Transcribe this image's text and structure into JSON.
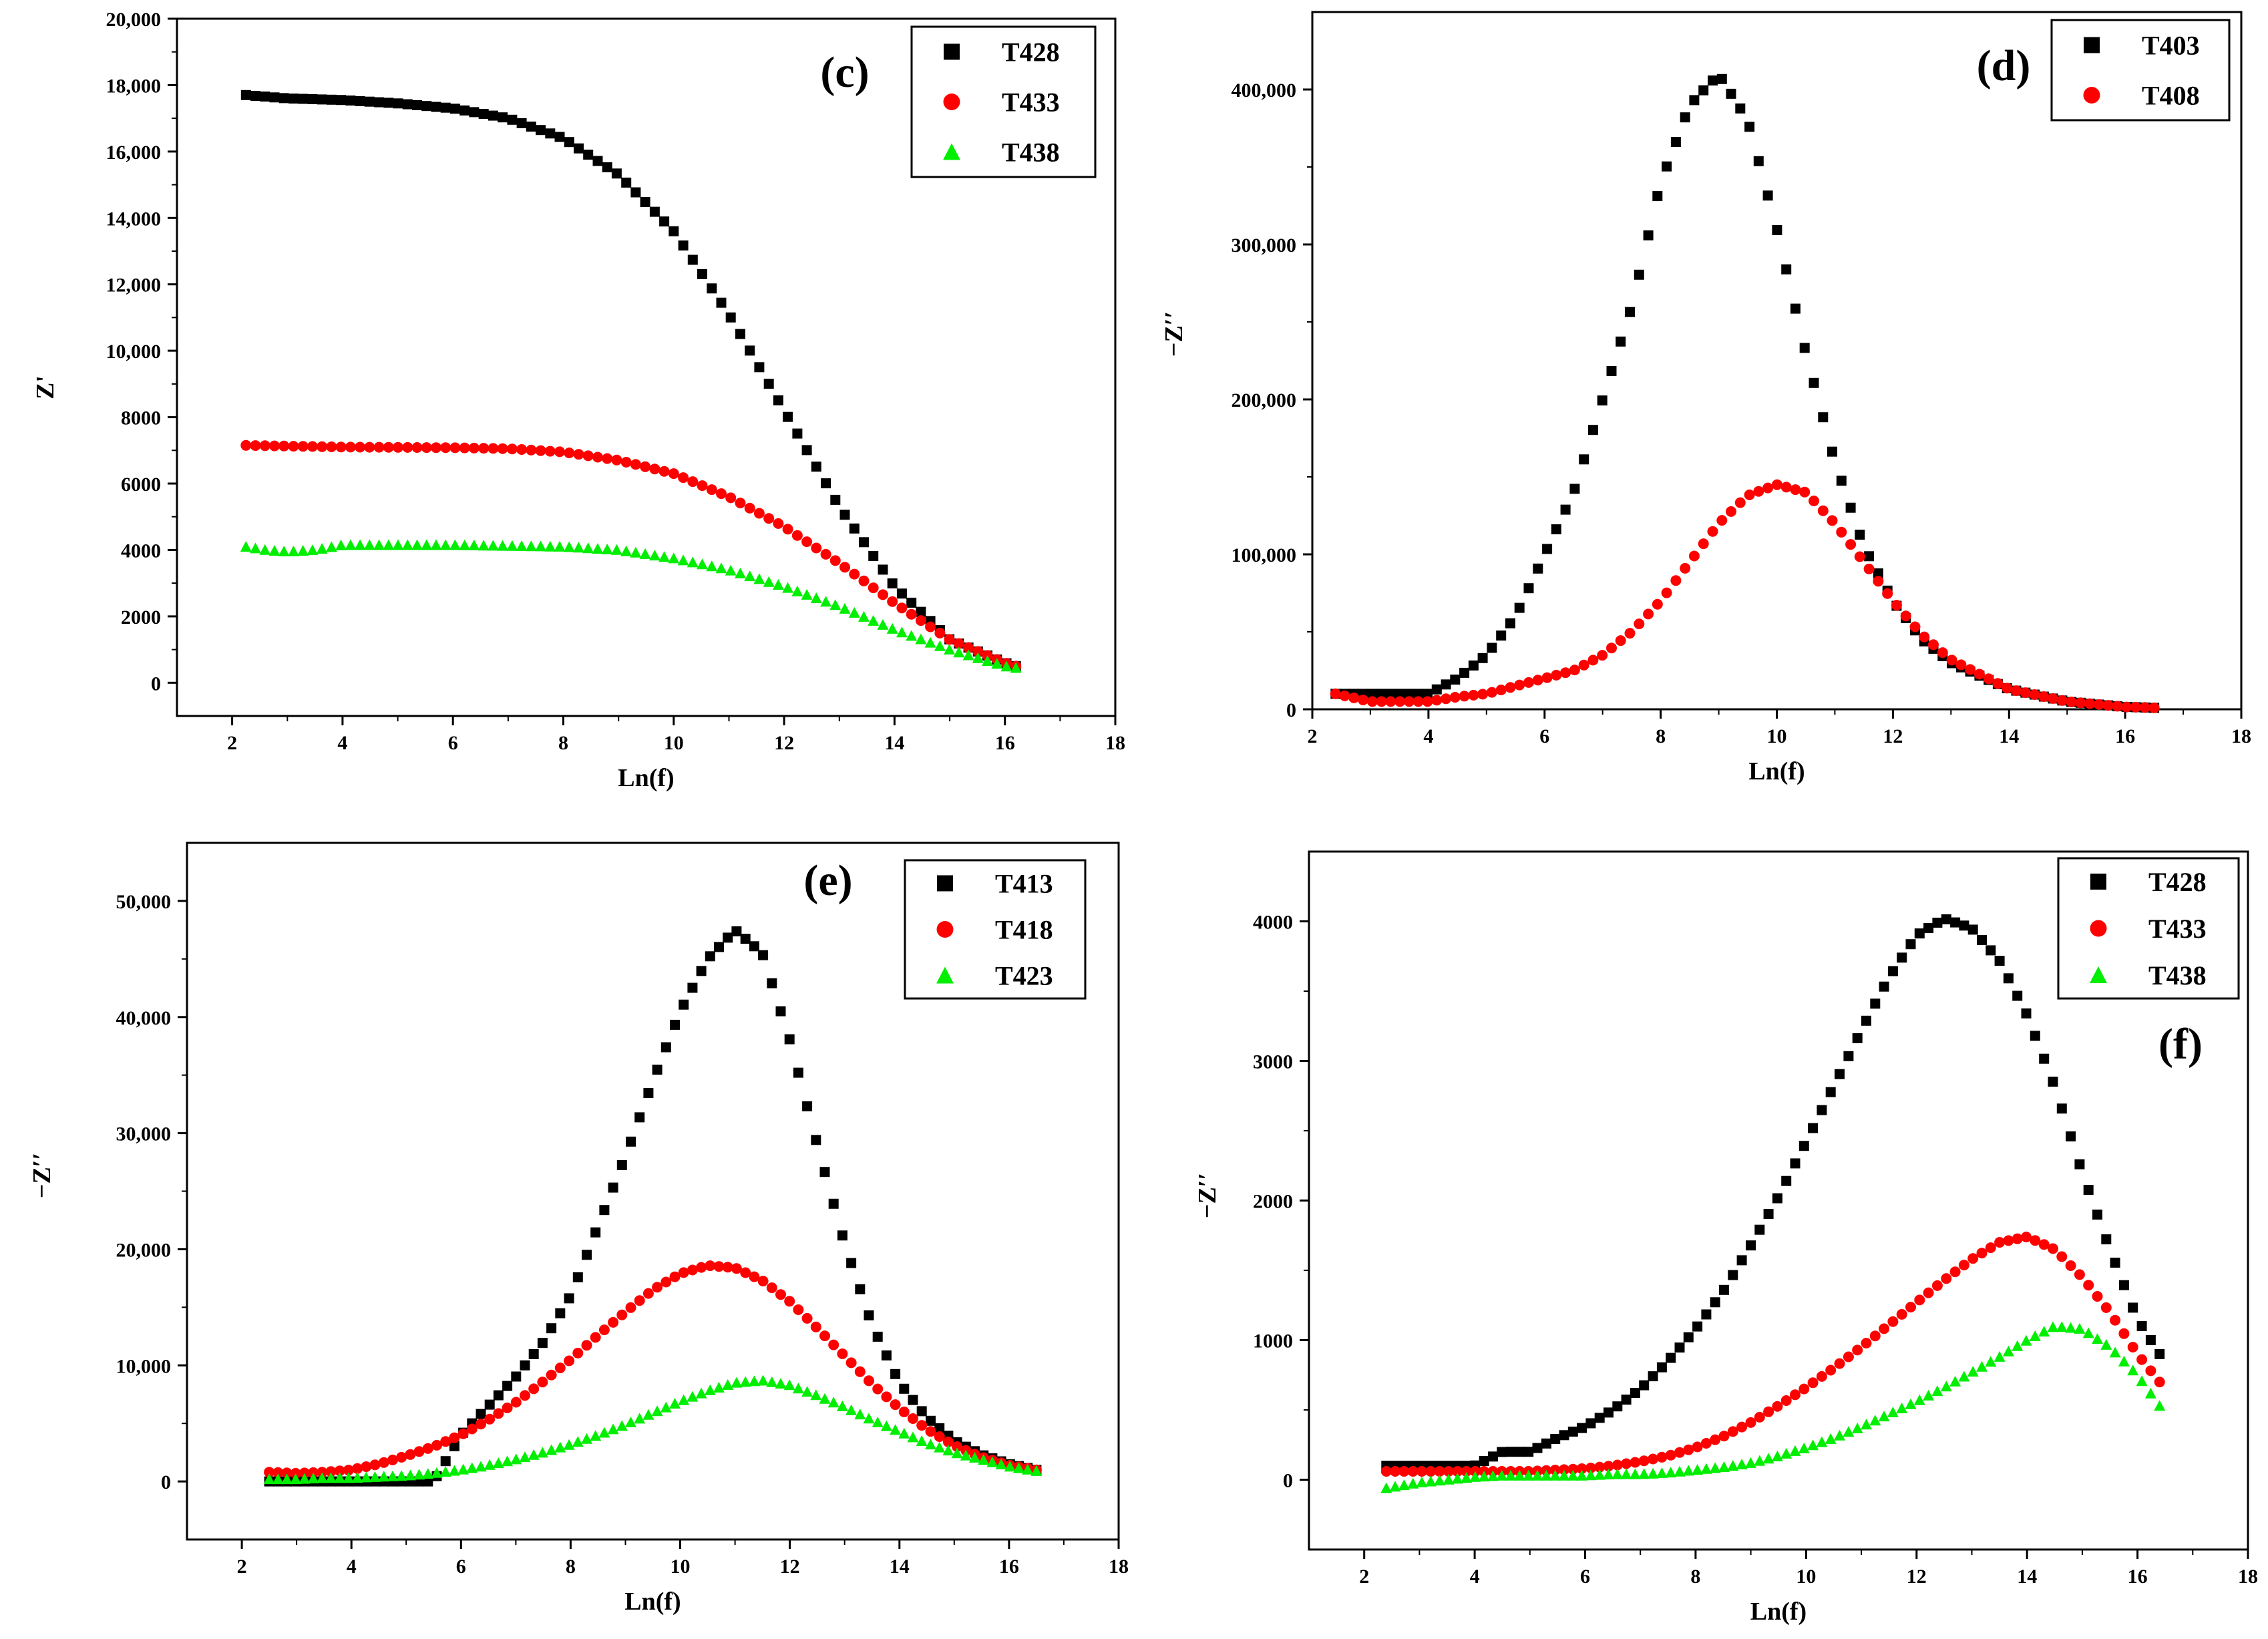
{
  "chart_data": [
    {
      "type": "scatter",
      "panel_label": "(c)",
      "xlabel": "Ln(f)",
      "ylabel": "Z'",
      "xlim": [
        1,
        18
      ],
      "ylim": [
        -1000,
        20000
      ],
      "x_ticks": [
        2,
        4,
        6,
        8,
        10,
        12,
        14,
        16,
        18
      ],
      "x_tick_labels": [
        "2",
        "4",
        "6",
        "8",
        "10",
        "12",
        "14",
        "16",
        "18"
      ],
      "y_ticks": [
        0,
        2000,
        4000,
        6000,
        8000,
        10000,
        12000,
        14000,
        16000,
        18000,
        20000
      ],
      "y_tick_labels": [
        "0",
        "2000",
        "4000",
        "6000",
        "8000",
        "10,000",
        "12,000",
        "14,000",
        "16,000",
        "18,000",
        "20,000"
      ],
      "x_range": [
        2.25,
        16.2
      ],
      "n_points": 82,
      "legend_position": "top-right",
      "series": [
        {
          "name": "T428",
          "marker": "square",
          "color": "#000000",
          "x": [
            2.25,
            3,
            4,
            5,
            6,
            7,
            8,
            9,
            10,
            11,
            12,
            13,
            14,
            15,
            16,
            16.2
          ],
          "y": [
            17700,
            17600,
            17550,
            17450,
            17300,
            17000,
            16400,
            15300,
            13600,
            11100,
            8200,
            5300,
            2900,
            1300,
            600,
            500
          ]
        },
        {
          "name": "T433",
          "marker": "circle",
          "color": "#ff0000",
          "x": [
            2.25,
            4,
            6,
            7,
            8,
            9,
            10,
            11,
            12,
            13,
            14,
            15,
            16,
            16.2
          ],
          "y": [
            7150,
            7100,
            7080,
            7050,
            6950,
            6700,
            6300,
            5600,
            4700,
            3600,
            2400,
            1300,
            600,
            500
          ]
        },
        {
          "name": "T438",
          "marker": "triangle",
          "color": "#00ee00",
          "x": [
            2.25,
            2.6,
            3,
            3.5,
            4,
            6,
            8,
            9,
            10,
            11,
            12,
            13,
            14,
            15,
            16,
            16.2
          ],
          "y": [
            4100,
            4000,
            3950,
            4000,
            4150,
            4150,
            4100,
            4000,
            3750,
            3400,
            2900,
            2300,
            1600,
            1000,
            500,
            450
          ]
        }
      ]
    },
    {
      "type": "scatter",
      "panel_label": "(d)",
      "xlabel": "Ln(f)",
      "ylabel": "−Z′′",
      "xlim": [
        2,
        18
      ],
      "ylim": [
        0,
        450000
      ],
      "x_ticks": [
        2,
        4,
        6,
        8,
        10,
        12,
        14,
        16,
        18
      ],
      "x_tick_labels": [
        "2",
        "4",
        "6",
        "8",
        "10",
        "12",
        "14",
        "16",
        "18"
      ],
      "y_ticks": [
        0,
        100000,
        200000,
        300000,
        400000
      ],
      "y_tick_labels": [
        "0",
        "100,000",
        "200,000",
        "300,000",
        "400,000"
      ],
      "x_range": [
        2.4,
        16.5
      ],
      "n_points": 90,
      "legend_position": "top-right",
      "series": [
        {
          "name": "T403",
          "marker": "square",
          "color": "#000000",
          "x": [
            2.4,
            3,
            3.5,
            4,
            4.5,
            5,
            5.5,
            6,
            6.5,
            7,
            7.5,
            8,
            8.5,
            9,
            9.5,
            10,
            10.5,
            11,
            11.5,
            12,
            12.5,
            13,
            14,
            15,
            16,
            16.5
          ],
          "y": [
            10000,
            10000,
            10000,
            10000,
            20000,
            35000,
            60000,
            100000,
            140000,
            200000,
            260000,
            340000,
            390000,
            410000,
            380000,
            310000,
            230000,
            160000,
            105000,
            70000,
            45000,
            30000,
            13000,
            5000,
            1500,
            1000
          ]
        },
        {
          "name": "T408",
          "marker": "circle",
          "color": "#ff0000",
          "x": [
            2.4,
            3,
            3.5,
            4,
            4.5,
            5,
            5.5,
            6,
            6.5,
            7,
            7.5,
            8,
            8.5,
            9,
            9.5,
            10,
            10.5,
            11,
            11.5,
            12,
            12.5,
            13,
            14,
            15,
            16,
            16.5
          ],
          "y": [
            10000,
            5000,
            5000,
            5000,
            8000,
            10000,
            15000,
            20000,
            25000,
            35000,
            50000,
            70000,
            95000,
            120000,
            138000,
            145000,
            140000,
            120000,
            95000,
            70000,
            48000,
            32000,
            13000,
            5000,
            1500,
            1000
          ]
        }
      ]
    },
    {
      "type": "scatter",
      "panel_label": "(e)",
      "xlabel": "Ln(f)",
      "ylabel": "−Z′′",
      "xlim": [
        1,
        18
      ],
      "ylim": [
        -5000,
        55000
      ],
      "x_ticks": [
        2,
        4,
        6,
        8,
        10,
        12,
        14,
        16,
        18
      ],
      "x_tick_labels": [
        "2",
        "4",
        "6",
        "8",
        "10",
        "12",
        "14",
        "16",
        "18"
      ],
      "y_ticks": [
        0,
        10000,
        20000,
        30000,
        40000,
        50000
      ],
      "y_tick_labels": [
        "0",
        "10,000",
        "20,000",
        "30,000",
        "40,000",
        "50,000"
      ],
      "x_range": [
        2.5,
        16.5
      ],
      "n_points": 88,
      "legend_position": "top-right",
      "series": [
        {
          "name": "T413",
          "marker": "square",
          "color": "#000000",
          "x": [
            2.5,
            3,
            4,
            4.1,
            4.5,
            5,
            5.5,
            6,
            6.5,
            7,
            7.5,
            8,
            8.5,
            9,
            9.5,
            10,
            10.5,
            11,
            11.5,
            12,
            12.5,
            13,
            13.5,
            14,
            14.5,
            15,
            15.5,
            16,
            16.5
          ],
          "y": [
            0,
            0,
            0,
            0,
            0,
            0,
            0,
            4000,
            6500,
            9000,
            12000,
            16000,
            22000,
            28000,
            34500,
            40500,
            45000,
            47500,
            45500,
            38000,
            29000,
            20500,
            13500,
            8500,
            5500,
            3500,
            2300,
            1500,
            1000
          ]
        },
        {
          "name": "T418",
          "marker": "circle",
          "color": "#ff0000",
          "x": [
            2.5,
            3,
            3.5,
            4,
            4.5,
            5,
            5.5,
            6,
            6.5,
            7,
            7.5,
            8,
            8.5,
            9,
            9.5,
            10,
            10.5,
            11,
            11.5,
            12,
            12.5,
            13,
            13.5,
            14,
            14.5,
            15,
            15.5,
            16,
            16.5
          ],
          "y": [
            800,
            700,
            800,
            1000,
            1500,
            2200,
            3000,
            4000,
            5300,
            6800,
            8600,
            10500,
            12600,
            14600,
            16500,
            17900,
            18600,
            18400,
            17300,
            15500,
            13200,
            10800,
            8400,
            6300,
            4500,
            3100,
            2100,
            1400,
            1000
          ]
        },
        {
          "name": "T423",
          "marker": "triangle",
          "color": "#00ee00",
          "x": [
            2.5,
            3,
            3.5,
            4,
            4.5,
            5,
            5.5,
            6,
            6.5,
            7,
            7.5,
            8,
            8.5,
            9,
            9.5,
            10,
            10.5,
            11,
            11.5,
            12,
            12.5,
            13,
            13.5,
            14,
            14.5,
            15,
            15.5,
            16,
            16.5
          ],
          "y": [
            200,
            200,
            300,
            300,
            400,
            500,
            700,
            1000,
            1400,
            1900,
            2500,
            3200,
            4000,
            4900,
            5900,
            6900,
            7800,
            8500,
            8700,
            8300,
            7400,
            6400,
            5300,
            4300,
            3300,
            2500,
            1900,
            1300,
            900
          ]
        }
      ]
    },
    {
      "type": "scatter",
      "panel_label": "(f)",
      "xlabel": "Ln(f)",
      "ylabel": "−Z′′",
      "xlim": [
        1,
        18
      ],
      "ylim": [
        -500,
        4500
      ],
      "x_ticks": [
        2,
        4,
        6,
        8,
        10,
        12,
        14,
        16,
        18
      ],
      "x_tick_labels": [
        "2",
        "4",
        "6",
        "8",
        "10",
        "12",
        "14",
        "16",
        "18"
      ],
      "y_ticks": [
        0,
        1000,
        2000,
        3000,
        4000
      ],
      "y_tick_labels": [
        "0",
        "1000",
        "2000",
        "3000",
        "4000"
      ],
      "x_range": [
        2.4,
        16.4
      ],
      "n_points": 88,
      "legend_position": "top-right",
      "series": [
        {
          "name": "T428",
          "marker": "square",
          "color": "#000000",
          "x": [
            2.4,
            3,
            4,
            4.5,
            5,
            5.5,
            6,
            6.5,
            7,
            7.5,
            8,
            8.5,
            9,
            9.5,
            10,
            10.5,
            11,
            11.5,
            12,
            12.5,
            13,
            13.5,
            14,
            14.5,
            15,
            15.5,
            16,
            16.4
          ],
          "y": [
            100,
            100,
            100,
            200,
            200,
            300,
            380,
            500,
            650,
            850,
            1080,
            1350,
            1680,
            2030,
            2420,
            2820,
            3220,
            3600,
            3900,
            4020,
            3950,
            3720,
            3330,
            2820,
            2200,
            1650,
            1150,
            900
          ]
        },
        {
          "name": "T433",
          "marker": "circle",
          "color": "#ff0000",
          "x": [
            2.4,
            3,
            4,
            4.5,
            5,
            5.5,
            6,
            6.5,
            7,
            7.5,
            8,
            8.5,
            9,
            9.5,
            10,
            10.5,
            11,
            11.5,
            12,
            12.5,
            13,
            13.5,
            14,
            14.5,
            15,
            15.5,
            16,
            16.4
          ],
          "y": [
            60,
            60,
            60,
            60,
            60,
            70,
            80,
            100,
            130,
            170,
            230,
            310,
            410,
            530,
            660,
            800,
            950,
            1110,
            1270,
            1430,
            1580,
            1700,
            1740,
            1650,
            1450,
            1200,
            900,
            700
          ]
        },
        {
          "name": "T438",
          "marker": "triangle",
          "color": "#00ee00",
          "x": [
            2.4,
            2.7,
            3,
            3.5,
            4,
            4.5,
            5,
            5.5,
            6,
            6.5,
            7,
            7.5,
            8,
            8.5,
            9,
            9.5,
            10,
            10.5,
            11,
            11.5,
            12,
            12.5,
            13,
            13.5,
            14,
            14.5,
            15,
            15.5,
            16,
            16.4
          ],
          "y": [
            -60,
            -40,
            -20,
            0,
            20,
            30,
            30,
            30,
            30,
            40,
            40,
            50,
            70,
            90,
            120,
            170,
            230,
            300,
            380,
            470,
            560,
            660,
            770,
            880,
            1000,
            1100,
            1080,
            950,
            750,
            530
          ]
        }
      ]
    }
  ]
}
